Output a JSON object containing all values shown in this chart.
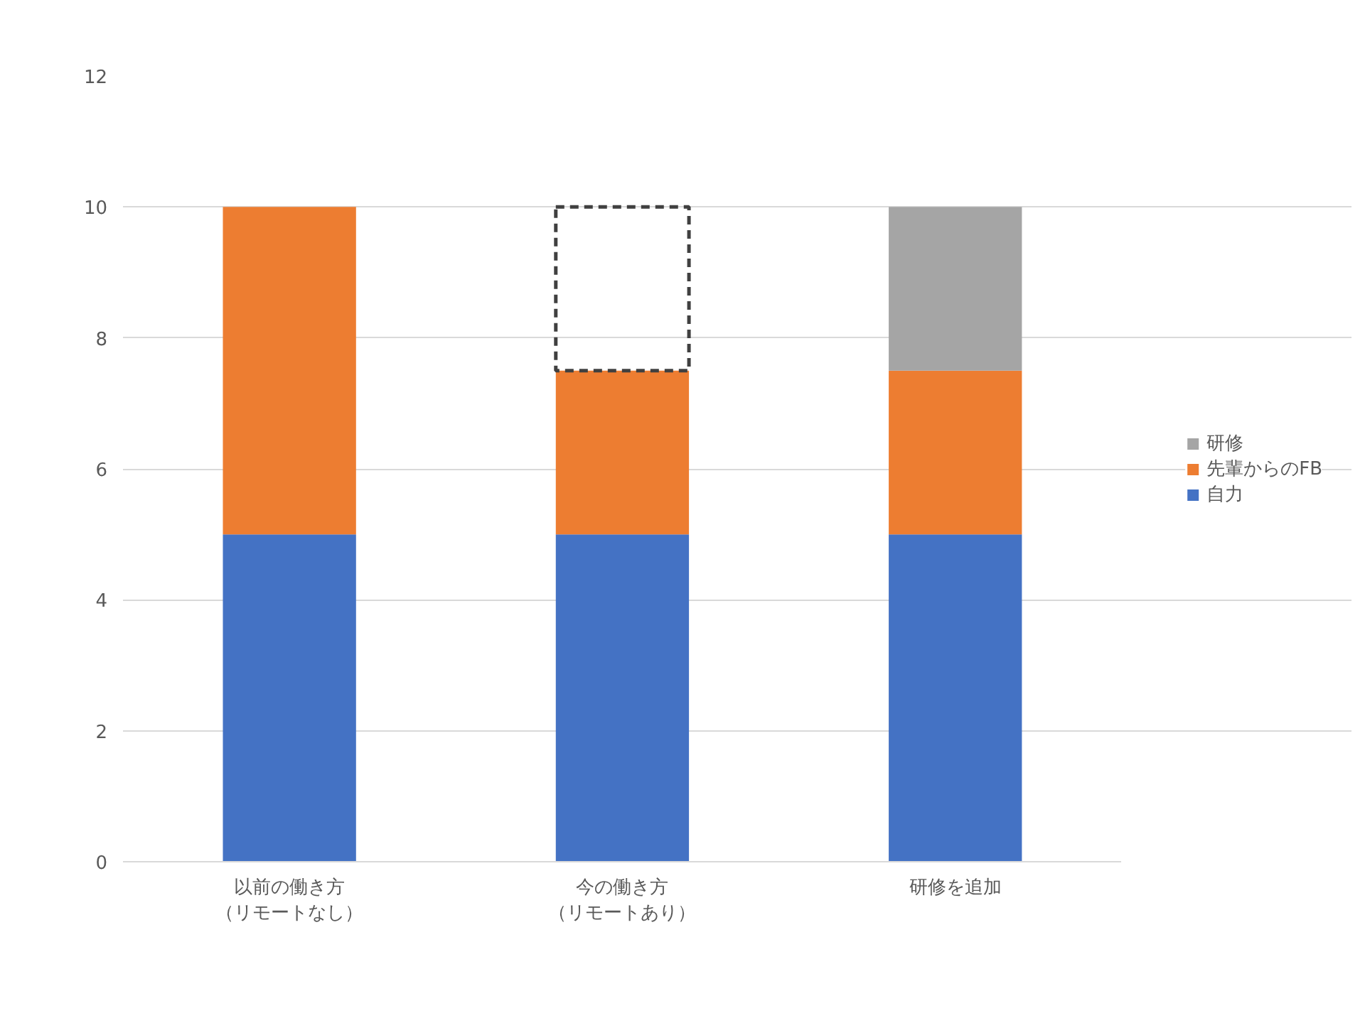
{
  "chart_data": {
    "type": "bar",
    "stacked": true,
    "categories": [
      "以前の働き方（リモートなし）",
      "今の働き方（リモートあり）",
      "研修を追加"
    ],
    "series": [
      {
        "name": "自力",
        "color": "#4472c4",
        "values": [
          5,
          5,
          5
        ]
      },
      {
        "name": "先輩からのFB",
        "color": "#ed7d31",
        "values": [
          5,
          2.5,
          2.5
        ]
      },
      {
        "name": "研修",
        "color": "#a5a5a5",
        "values": [
          null,
          null,
          2.5
        ]
      },
      {
        "color": "#404040",
        "values": [
          null,
          2.5,
          null
        ],
        "line_style": "dashed"
      }
    ],
    "ylim": [
      0,
      12
    ],
    "yticks": [
      0,
      2,
      4,
      6,
      8,
      10,
      12
    ],
    "grid": "y",
    "legend": "right"
  }
}
